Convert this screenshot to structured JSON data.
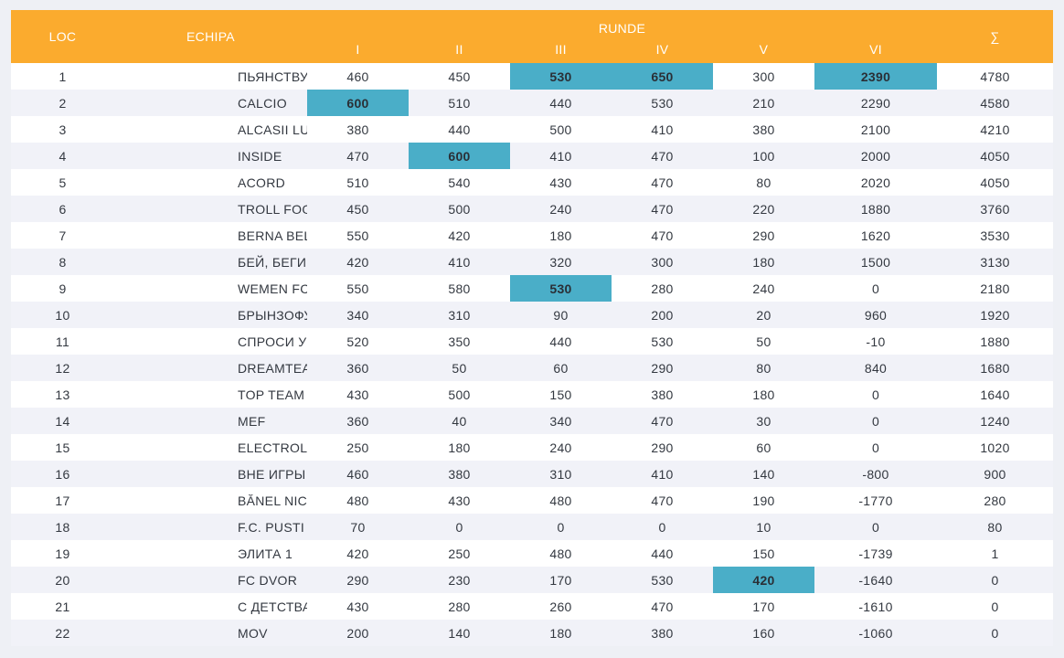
{
  "header": {
    "loc": "LOC",
    "team": "ECHIPA",
    "rounds_group": "RUNDE",
    "rounds": [
      "I",
      "II",
      "III",
      "IV",
      "V",
      "VI"
    ],
    "sum": "∑"
  },
  "highlight_color": "#4aaec8",
  "header_color": "#fbab2e",
  "rows": [
    {
      "loc": "1",
      "team": "ПЬЯНСТВУ BOYZ",
      "r": [
        "460",
        "450",
        "530",
        "650",
        "300",
        "2390"
      ],
      "sum": "4780",
      "hl": [
        2,
        3,
        5
      ]
    },
    {
      "loc": "2",
      "team": "CALCIO",
      "r": [
        "600",
        "510",
        "440",
        "530",
        "210",
        "2290"
      ],
      "sum": "4580",
      "hl": [
        0
      ]
    },
    {
      "loc": "3",
      "team": "ALCASII LUI STEFAN",
      "r": [
        "380",
        "440",
        "500",
        "410",
        "380",
        "2100"
      ],
      "sum": "4210",
      "hl": []
    },
    {
      "loc": "4",
      "team": "INSIDE",
      "r": [
        "470",
        "600",
        "410",
        "470",
        "100",
        "2000"
      ],
      "sum": "4050",
      "hl": [
        1
      ]
    },
    {
      "loc": "5",
      "team": "ACORD",
      "r": [
        "510",
        "540",
        "430",
        "470",
        "80",
        "2020"
      ],
      "sum": "4050",
      "hl": []
    },
    {
      "loc": "6",
      "team": "TROLL FOOTBALL",
      "r": [
        "450",
        "500",
        "240",
        "470",
        "220",
        "1880"
      ],
      "sum": "3760",
      "hl": []
    },
    {
      "loc": "7",
      "team": "BERNA BELLA",
      "r": [
        "550",
        "420",
        "180",
        "470",
        "290",
        "1620"
      ],
      "sum": "3530",
      "hl": []
    },
    {
      "loc": "8",
      "team": "БЕЙ, БЕГИ",
      "r": [
        "420",
        "410",
        "320",
        "300",
        "180",
        "1500"
      ],
      "sum": "3130",
      "hl": []
    },
    {
      "loc": "9",
      "team": "WEMEN FC",
      "r": [
        "550",
        "580",
        "530",
        "280",
        "240",
        "0"
      ],
      "sum": "2180",
      "hl": [
        2
      ]
    },
    {
      "loc": "10",
      "team": "БРЫНЗОФУТЫ",
      "r": [
        "340",
        "310",
        "90",
        "200",
        "20",
        "960"
      ],
      "sum": "1920",
      "hl": []
    },
    {
      "loc": "11",
      "team": "СПРОСИ У БУБНОВА",
      "r": [
        "520",
        "350",
        "440",
        "530",
        "50",
        "-10"
      ],
      "sum": "1880",
      "hl": []
    },
    {
      "loc": "12",
      "team": "DREAMTEAM",
      "r": [
        "360",
        "50",
        "60",
        "290",
        "80",
        "840"
      ],
      "sum": "1680",
      "hl": []
    },
    {
      "loc": "13",
      "team": "TOP TEAM",
      "r": [
        "430",
        "500",
        "150",
        "380",
        "180",
        "0"
      ],
      "sum": "1640",
      "hl": []
    },
    {
      "loc": "14",
      "team": "MEF",
      "r": [
        "360",
        "40",
        "340",
        "470",
        "30",
        "0"
      ],
      "sum": "1240",
      "hl": []
    },
    {
      "loc": "15",
      "team": "ELECTROLUX",
      "r": [
        "250",
        "180",
        "240",
        "290",
        "60",
        "0"
      ],
      "sum": "1020",
      "hl": []
    },
    {
      "loc": "16",
      "team": "ВНЕ ИГРЫ",
      "r": [
        "460",
        "380",
        "310",
        "410",
        "140",
        "-800"
      ],
      "sum": "900",
      "hl": []
    },
    {
      "loc": "17",
      "team": "BĂNEL NICOLIȚA",
      "r": [
        "480",
        "430",
        "480",
        "470",
        "190",
        "-1770"
      ],
      "sum": "280",
      "hl": []
    },
    {
      "loc": "18",
      "team": "F.C. PUSTI GOVORIAT",
      "r": [
        "70",
        "0",
        "0",
        "0",
        "10",
        "0"
      ],
      "sum": "80",
      "hl": []
    },
    {
      "loc": "19",
      "team": "ЭЛИТА 1",
      "r": [
        "420",
        "250",
        "480",
        "440",
        "150",
        "-1739"
      ],
      "sum": "1",
      "hl": []
    },
    {
      "loc": "20",
      "team": "FC DVOR",
      "r": [
        "290",
        "230",
        "170",
        "530",
        "420",
        "-1640"
      ],
      "sum": "0",
      "hl": [
        4
      ]
    },
    {
      "loc": "21",
      "team": "С ДЕТСТВА ЗА ТОТТ...",
      "r": [
        "430",
        "280",
        "260",
        "470",
        "170",
        "-1610"
      ],
      "sum": "0",
      "hl": []
    },
    {
      "loc": "22",
      "team": "MOV",
      "r": [
        "200",
        "140",
        "180",
        "380",
        "160",
        "-1060"
      ],
      "sum": "0",
      "hl": []
    }
  ]
}
